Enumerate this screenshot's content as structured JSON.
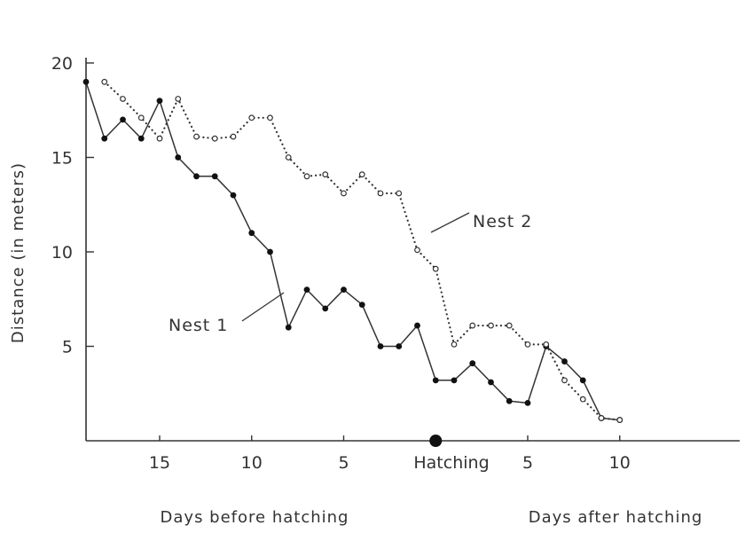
{
  "chart_data": {
    "type": "line",
    "title": "",
    "ylabel": "Distance (in meters)",
    "xlabel_left": "Days before hatching",
    "xlabel_right": "Days after hatching",
    "hatching_label": "Hatching",
    "ylim": [
      0,
      20
    ],
    "xlim": [
      -19,
      15
    ],
    "x_ticks": [
      {
        "value": -15,
        "label": "15"
      },
      {
        "value": -10,
        "label": "10"
      },
      {
        "value": -5,
        "label": "5"
      },
      {
        "value": 5,
        "label": "5"
      },
      {
        "value": 10,
        "label": "10"
      }
    ],
    "y_ticks": [
      {
        "value": 5,
        "label": "5"
      },
      {
        "value": 10,
        "label": "10"
      },
      {
        "value": 15,
        "label": "15"
      },
      {
        "value": 20,
        "label": "20"
      }
    ],
    "hatching_marker": {
      "x": 0,
      "y": 0
    },
    "series": [
      {
        "name": "Nest 1",
        "style": "solid",
        "marker": "filled",
        "x": [
          -19,
          -18,
          -17,
          -16,
          -15,
          -14,
          -13,
          -12,
          -11,
          -10,
          -9,
          -8,
          -7,
          -6,
          -5,
          -4,
          -3,
          -2,
          -1,
          0,
          1,
          2,
          3,
          4,
          5,
          6,
          7,
          8,
          9,
          10
        ],
        "y": [
          19,
          16,
          17,
          16,
          18,
          15,
          14,
          14,
          13,
          11,
          10,
          6,
          8,
          7,
          8,
          7.2,
          5,
          5,
          6.1,
          3.2,
          3.2,
          4.1,
          3.1,
          2.1,
          2,
          5,
          4.2,
          3.2,
          1.2,
          1.1
        ]
      },
      {
        "name": "Nest 2",
        "style": "dotted",
        "marker": "open",
        "x": [
          -18,
          -17,
          -16,
          -15,
          -14,
          -13,
          -12,
          -11,
          -10,
          -9,
          -8,
          -7,
          -6,
          -5,
          -4,
          -3,
          -2,
          -1,
          0,
          1,
          2,
          3,
          4,
          5,
          6,
          7,
          8,
          9,
          10
        ],
        "y": [
          19,
          18.1,
          17.1,
          16,
          18.1,
          16.1,
          16,
          16.1,
          17.1,
          17.1,
          15,
          14,
          14.1,
          13.1,
          14.1,
          13.1,
          13.1,
          10.1,
          9.1,
          5.1,
          6.1,
          6.1,
          6.1,
          5.1,
          5.1,
          3.2,
          2.2,
          1.2,
          1.1
        ]
      }
    ],
    "annotations": [
      {
        "text": "Nest 1",
        "series": "Nest 1"
      },
      {
        "text": "Nest 2",
        "series": "Nest 2"
      }
    ],
    "grid": false,
    "legend": "none"
  }
}
